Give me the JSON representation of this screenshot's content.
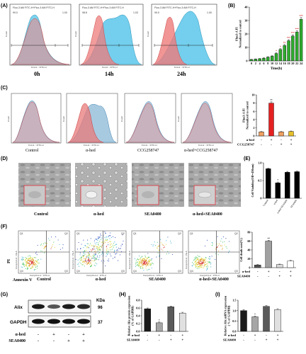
{
  "panels": {
    "A": {
      "letter": "(A)",
      "histograms": [
        {
          "time_label": "0h",
          "header": "Fluo-3 AM FITC-H+Fluo-3 AM FITC-H",
          "left_pct": "99.0",
          "right_pct": "1.00",
          "xlabel": "FL1-H :: FITC-H",
          "ylabel": "Count"
        },
        {
          "time_label": "14h",
          "header": "Fluo-3 AM FITC-H+Fluo-3 AM FITC-H",
          "left_pct": "98.8",
          "right_pct": "1.03",
          "xlabel": "FL1-H :: FITC-H",
          "ylabel": "Count"
        },
        {
          "time_label": "24h",
          "header": "Fluo-3 AM FITC-H+Fluo-3 AM FITC-H",
          "left_pct": "99.0",
          "right_pct": "1.00",
          "xlabel": "FL1-H :: FITC-H",
          "ylabel": "Count"
        }
      ]
    },
    "B": {
      "letter": "(B)"
    },
    "C": {
      "letter": "(C)",
      "histogram_labels": [
        "Control",
        "α-hed",
        "CCG258747",
        "α-hed+CCG258747"
      ],
      "axis_label": "FL1-H :: FITC-H",
      "count_label": "Count"
    },
    "D": {
      "letter": "(D)",
      "image_labels": [
        "Control",
        "α-hed",
        "SEA0400",
        "α-hed+SEA0400"
      ]
    },
    "E": {
      "letter": "(E)"
    },
    "F": {
      "letter": "(F)",
      "dot_labels": [
        "Control",
        "α-hed",
        "SEA0400",
        "α-hed+SEA0400"
      ],
      "yaxis": "PI",
      "xaxis": "Annexin V",
      "inner_x": "Comp-FL1-A :: FITC-A",
      "inner_y": "Comp-FL2-A :: PE-A",
      "quads": [
        {
          "tl": "Q1",
          "tr": "Q2",
          "bl": "Q4",
          "br": "Q3"
        },
        {
          "tl": "Q1",
          "tr": "Q2",
          "bl": "Q4",
          "br": "Q3"
        },
        {
          "tl": "Q1",
          "tr": "Q2",
          "bl": "Q4",
          "br": "Q3"
        },
        {
          "tl": "Q1",
          "tr": "Q2",
          "bl": "Q4",
          "br": "Q3"
        }
      ]
    },
    "G": {
      "letter": "(G)",
      "kda_header": "KDa",
      "rows": [
        {
          "name": "Alix",
          "kda": "96"
        },
        {
          "name": "GAPDH",
          "kda": "37"
        }
      ],
      "treat_rows": [
        {
          "name": "α-hed",
          "signs": [
            "-",
            "+",
            "-",
            "+"
          ]
        },
        {
          "name": "SEA0400",
          "signs": [
            "-",
            "-",
            "+",
            "+"
          ]
        }
      ]
    },
    "H": {
      "letter": "(H)"
    },
    "I": {
      "letter": "(I)"
    }
  },
  "chart_data": [
    {
      "id": "B",
      "type": "bar",
      "categories": [
        "0",
        "2",
        "4",
        "6",
        "8",
        "10",
        "12",
        "14",
        "16",
        "18",
        "20",
        "22",
        "24"
      ],
      "values": [
        1.0,
        1.3,
        1.6,
        2.0,
        2.8,
        3.5,
        5.5,
        8.5,
        11.5,
        15.0,
        18.5,
        21.5,
        31.0
      ],
      "errors": [
        0.2,
        0.2,
        0.2,
        0.3,
        0.3,
        0.4,
        0.5,
        0.6,
        0.7,
        0.8,
        0.9,
        1.0,
        1.2
      ],
      "sig": [
        "",
        "",
        "",
        "",
        "",
        "",
        "*",
        "*",
        "**",
        "***",
        "***",
        "***",
        "***"
      ],
      "ylim": [
        0,
        40
      ],
      "yticks": [
        "0",
        "10",
        "20",
        "30",
        "40"
      ],
      "xlabel": "Time(h)",
      "ylabel": "Fluo3-A FI\nNormalized to control",
      "color": "#2eab2e"
    },
    {
      "id": "C",
      "type": "bar",
      "values": [
        1.0,
        8.0,
        1.0,
        1.1
      ],
      "errors": [
        0.1,
        0.3,
        0.1,
        0.1
      ],
      "colors": [
        "#f0a060",
        "#e52020",
        "#f0a060",
        "#e6c02a"
      ],
      "sig": [
        "",
        "**",
        "",
        ""
      ],
      "ylim": [
        0,
        10
      ],
      "yticks": [
        "0",
        "2",
        "4",
        "6",
        "8",
        "10"
      ],
      "ylabel": "Fluo3-A FI\nNormalized to control",
      "treat_rows": [
        {
          "name": "α-hed",
          "signs": [
            "-",
            "+",
            "-",
            "+"
          ]
        },
        {
          "name": "CCG258747",
          "signs": [
            "-",
            "-",
            "+",
            "+"
          ]
        }
      ]
    },
    {
      "id": "E",
      "type": "bar",
      "categories": [
        "Control",
        "α-hed",
        "α-hed+SEA0400",
        "SEA0400"
      ],
      "values": [
        1.0,
        0.52,
        0.88,
        0.9
      ],
      "errors": [
        0.02,
        0.03,
        0.03,
        0.02
      ],
      "sig": [
        "",
        "*",
        "",
        ""
      ],
      "ylim": [
        0,
        1.2
      ],
      "yticks": [
        "0",
        "0.5",
        "1.0"
      ],
      "ylabel": "Cell Viability(OD=450nm)",
      "color": "#000000"
    },
    {
      "id": "F",
      "type": "bar",
      "values": [
        6,
        60,
        7,
        15
      ],
      "errors": [
        1,
        2,
        1,
        1.5
      ],
      "colors": [
        "#555555",
        "#a0a0a0",
        "#d9d9d9",
        "#ffffff"
      ],
      "sig": [
        "",
        "**",
        "",
        ""
      ],
      "ylim": [
        0,
        80
      ],
      "yticks": [
        "0",
        "20",
        "40",
        "60",
        "80"
      ],
      "ylabel": "Cell death rate(%)",
      "treat_rows": [
        {
          "name": "α-hed",
          "signs": [
            "-",
            "+",
            "-",
            "+"
          ]
        },
        {
          "name": "SEA0400",
          "signs": [
            "-",
            "-",
            "+",
            "+"
          ]
        }
      ]
    },
    {
      "id": "H",
      "type": "bar",
      "values": [
        0.58,
        0.22,
        0.63,
        0.47
      ],
      "errors": [
        0.02,
        0.02,
        0.02,
        0.02
      ],
      "colors": [
        "#1a1a1a",
        "#a6a6a6",
        "#5a5a5a",
        "#e0e0e0"
      ],
      "sig": [
        "",
        "*",
        "",
        ""
      ],
      "ylim": [
        0,
        0.8
      ],
      "yticks": [
        "0.0",
        "0.2",
        "0.4",
        "0.6",
        "0.8"
      ],
      "ylabel": "Relative Alix protein expression\n(% of GAPDH)",
      "treat_rows": [
        {
          "name": "α-hed",
          "signs": [
            "-",
            "+",
            "-",
            "+"
          ]
        },
        {
          "name": "SEA0400",
          "signs": [
            "-",
            "-",
            "+",
            "+"
          ]
        }
      ]
    },
    {
      "id": "I",
      "type": "bar",
      "values": [
        1.0,
        0.7,
        1.2,
        1.05
      ],
      "errors": [
        0.05,
        0.04,
        0.04,
        0.04
      ],
      "colors": [
        "#1a1a1a",
        "#a6a6a6",
        "#5a5a5a",
        "#e0e0e0"
      ],
      "sig": [
        "",
        "*",
        "",
        ""
      ],
      "ylim": [
        0,
        1.5
      ],
      "yticks": [
        "0.0",
        "0.5",
        "1.0",
        "1.5"
      ],
      "ylabel": "Relative Alix mRNA expression\n( % of GAPDH)",
      "treat_rows": [
        {
          "name": "α-hed",
          "signs": [
            "-",
            "+",
            "-",
            "+"
          ]
        },
        {
          "name": "SEA0400",
          "signs": [
            "-",
            "-",
            "+",
            "+"
          ]
        }
      ]
    }
  ]
}
